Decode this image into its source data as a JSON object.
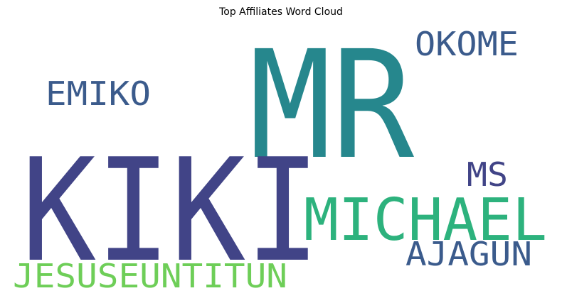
{
  "chart_data": {
    "type": "wordcloud",
    "title": "Top Affiliates Word Cloud",
    "words": [
      {
        "text": "MR",
        "color": "#26878d"
      },
      {
        "text": "KIKI",
        "color": "#414487"
      },
      {
        "text": "MICHAEL",
        "color": "#2db27d"
      },
      {
        "text": "OKOME",
        "color": "#3b5b8c"
      },
      {
        "text": "EMIKO",
        "color": "#3b5b8c"
      },
      {
        "text": "MS",
        "color": "#414487"
      },
      {
        "text": "AJAGUN",
        "color": "#3b5b8c"
      },
      {
        "text": "JESUSEUNTITUN",
        "color": "#6ece58"
      }
    ],
    "background": "#ffffff"
  }
}
